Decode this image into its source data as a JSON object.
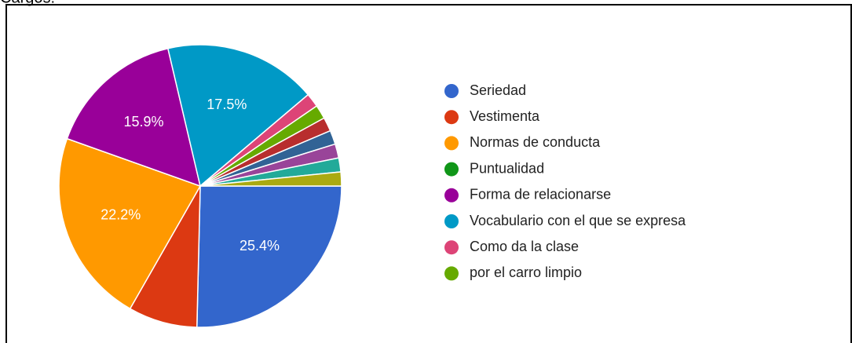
{
  "chart_data": {
    "type": "pie",
    "title": "Cargos:",
    "categories": [
      "Seriedad",
      "Vestimenta",
      "Normas de conducta",
      "Puntualidad",
      "Forma de relacionarse",
      "Vocabulario con el que se expresa",
      "Como da la clase",
      "por el carro limpio",
      null,
      null,
      null,
      null,
      null
    ],
    "values": [
      25.4,
      7.9,
      22.2,
      0,
      15.9,
      17.5,
      1.6,
      1.6,
      1.6,
      1.6,
      1.6,
      1.6,
      1.6
    ],
    "value_labels": [
      "25.4%",
      null,
      "22.2%",
      null,
      "15.9%",
      "17.5%",
      null,
      null,
      null,
      null,
      null,
      null,
      null
    ],
    "colors": [
      "#3366cc",
      "#dc3912",
      "#ff9900",
      "#109618",
      "#990099",
      "#0099c6",
      "#dd4477",
      "#66aa00",
      "#b82e2e",
      "#316395",
      "#994499",
      "#22aa99",
      "#aaaa11"
    ]
  }
}
